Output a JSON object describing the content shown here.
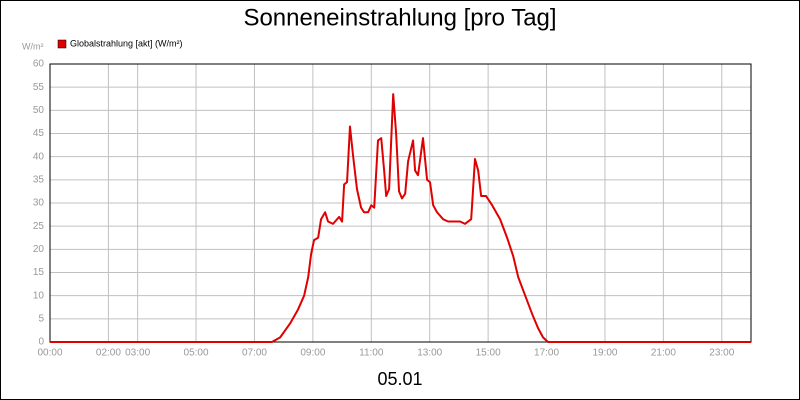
{
  "chart_data": {
    "type": "line",
    "title": "Sonneneinstrahlung [pro Tag]",
    "y_label": "W/m²",
    "x_label": "05.01",
    "xlim": [
      0,
      24
    ],
    "ylim": [
      0,
      60
    ],
    "yticks": [
      0,
      5,
      10,
      15,
      20,
      25,
      30,
      35,
      40,
      45,
      50,
      55,
      60
    ],
    "xticks": [
      {
        "value": 0,
        "label": "00:00"
      },
      {
        "value": 2,
        "label": "02:00"
      },
      {
        "value": 3,
        "label": "03:00"
      },
      {
        "value": 5,
        "label": "05:00"
      },
      {
        "value": 7,
        "label": "07:00"
      },
      {
        "value": 9,
        "label": "09:00"
      },
      {
        "value": 11,
        "label": "11:00"
      },
      {
        "value": 13,
        "label": "13:00"
      },
      {
        "value": 15,
        "label": "15:00"
      },
      {
        "value": 17,
        "label": "17:00"
      },
      {
        "value": 19,
        "label": "19:00"
      },
      {
        "value": 21,
        "label": "21:00"
      },
      {
        "value": 23,
        "label": "23:00"
      }
    ],
    "grid": true,
    "legend": "top-left",
    "x": [
      0,
      7.6,
      7.88,
      8.22,
      8.49,
      8.7,
      8.84,
      8.94,
      9.04,
      9.18,
      9.28,
      9.42,
      9.52,
      9.69,
      9.9,
      10.0,
      10.07,
      10.17,
      10.27,
      10.38,
      10.51,
      10.65,
      10.75,
      10.89,
      11.0,
      11.1,
      11.23,
      11.34,
      11.44,
      11.51,
      11.61,
      11.75,
      11.85,
      11.95,
      12.05,
      12.16,
      12.26,
      12.43,
      12.5,
      12.6,
      12.77,
      12.91,
      13.01,
      13.12,
      13.25,
      13.46,
      13.63,
      13.87,
      14.04,
      14.21,
      14.42,
      14.55,
      14.66,
      14.76,
      14.93,
      15.14,
      15.41,
      15.65,
      15.86,
      16.03,
      16.27,
      16.51,
      16.71,
      16.88,
      17.05,
      24
    ],
    "series": [
      {
        "name": "Globalstrahlung [akt] (W/m²)",
        "color": "#e00000",
        "values": [
          0,
          0,
          1,
          4,
          7,
          10,
          14,
          19,
          22,
          22.5,
          26.5,
          28,
          26,
          25.5,
          27,
          26,
          34,
          34.5,
          46.5,
          40,
          33,
          29,
          28,
          28,
          29.5,
          29,
          43.5,
          44,
          37,
          31.5,
          33,
          53.5,
          45,
          32.5,
          31,
          32,
          39,
          43.5,
          37,
          36,
          44,
          35,
          34.5,
          29.5,
          28,
          26.5,
          26,
          26,
          26,
          25.5,
          26.5,
          39.5,
          37,
          31.5,
          31.5,
          29.5,
          26.5,
          22.5,
          18.5,
          14,
          10,
          6,
          3,
          1,
          0,
          0
        ]
      }
    ]
  }
}
